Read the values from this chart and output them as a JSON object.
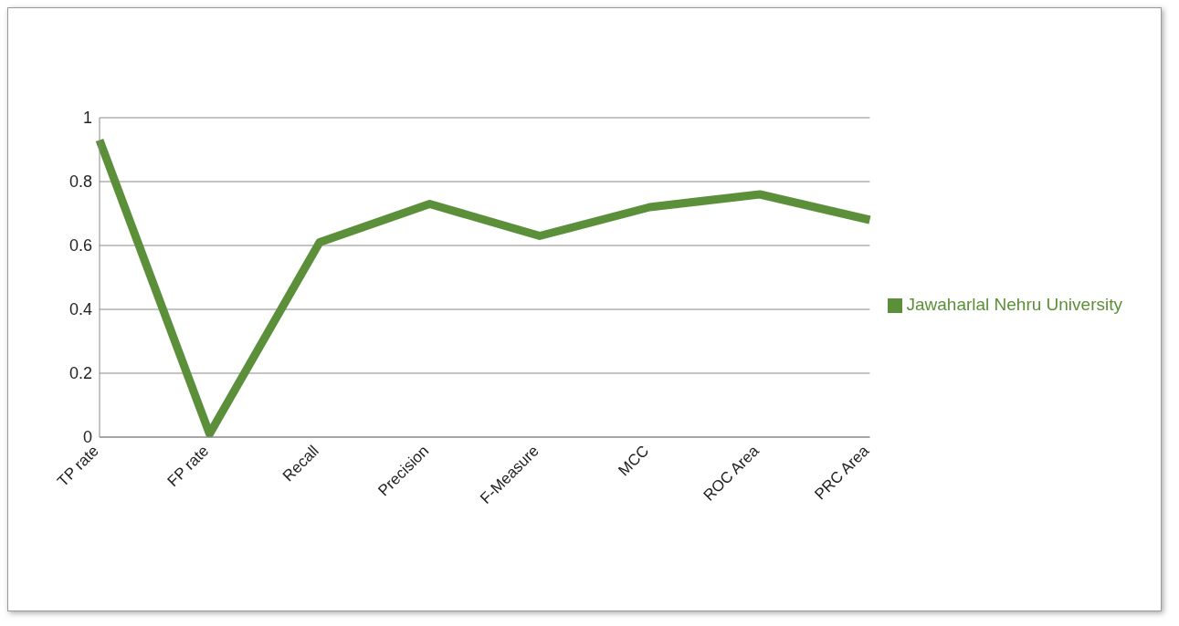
{
  "chart_data": {
    "type": "line",
    "categories": [
      "TP rate",
      "FP rate",
      "Recall",
      "Precision",
      "F-Measure",
      "MCC",
      "ROC Area",
      "PRC Area"
    ],
    "series": [
      {
        "name": "Jawaharlal Nehru University",
        "color": "#5b8f3a",
        "values": [
          0.93,
          0.01,
          0.61,
          0.73,
          0.63,
          0.72,
          0.76,
          0.68
        ]
      }
    ],
    "ylim": [
      0,
      1
    ],
    "yticks": [
      0,
      {
        "value": 0.2,
        "label": "0.2"
      },
      {
        "value": 0.4,
        "label": "0.4"
      },
      {
        "value": 0.6,
        "label": "0.6"
      },
      {
        "value": 0.8,
        "label": "0.8"
      },
      1
    ],
    "grid": "y",
    "legend": "right",
    "marker": "none",
    "line_style": "solid"
  }
}
